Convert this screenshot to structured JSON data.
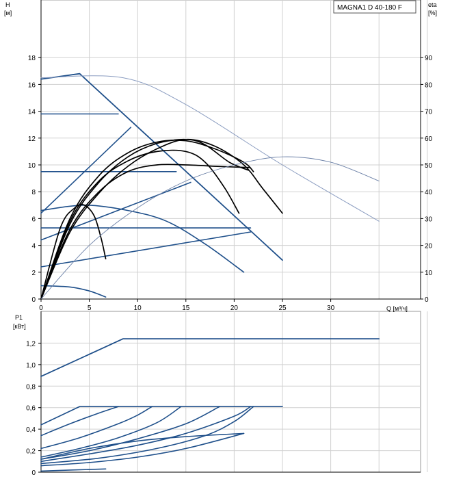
{
  "model_label": "MAGNA1 D 40-180 F",
  "colors": {
    "setting_line": "#1e4f8a",
    "head_curve": "#000000",
    "eta_curve": "#6a7fa6",
    "max_curve": "#8a9cc0",
    "grid": "#d0d0d0"
  },
  "chart_data": [
    {
      "type": "line",
      "title": "",
      "xlabel": "Q [м³/ч]",
      "ylabel": "H",
      "ylabel_unit": "[м]",
      "y2label": "eta",
      "y2label_unit": "[%]",
      "xlim": [
        0,
        42
      ],
      "ylim": [
        0,
        20
      ],
      "y2lim": [
        0,
        100
      ],
      "xticks": [
        0,
        5,
        10,
        15,
        20,
        25,
        30
      ],
      "xtick_labels": [
        "0",
        "5",
        "10",
        "15",
        "20",
        "25",
        "30"
      ],
      "yticks": [
        0,
        2,
        4,
        6,
        8,
        10,
        12,
        14,
        16,
        18
      ],
      "ytick_labels": [
        "0",
        "2",
        "4",
        "6",
        "8",
        "10",
        "12",
        "14",
        "16",
        "18"
      ],
      "y2ticks": [
        0,
        10,
        20,
        30,
        40,
        50,
        60,
        70,
        80,
        90
      ],
      "y2tick_labels": [
        "0",
        "10",
        "20",
        "30",
        "40",
        "50",
        "60",
        "70",
        "80",
        "90"
      ],
      "grid": true,
      "series": [
        {
          "role": "max",
          "axis": "y",
          "points": [
            [
              0,
              16.4
            ],
            [
              4,
              16.8
            ],
            [
              25,
              2.9
            ]
          ]
        },
        {
          "role": "max",
          "axis": "y",
          "points": [
            [
              0,
              16.5
            ],
            [
              8.5,
              16.5
            ],
            [
              15,
              14.5
            ],
            [
              25,
              10.0
            ],
            [
              35,
              5.8
            ]
          ]
        },
        {
          "role": "setting",
          "axis": "y",
          "points": [
            [
              0,
              13.8
            ],
            [
              8,
              13.8
            ]
          ]
        },
        {
          "role": "setting",
          "axis": "y",
          "points": [
            [
              0,
              9.5
            ],
            [
              14,
              9.5
            ]
          ]
        },
        {
          "role": "setting",
          "axis": "y",
          "points": [
            [
              0,
              5.3
            ],
            [
              21.7,
              5.3
            ]
          ]
        },
        {
          "role": "setting",
          "axis": "y",
          "points": [
            [
              0,
              6.4
            ],
            [
              9.3,
              12.8
            ]
          ]
        },
        {
          "role": "setting",
          "axis": "y",
          "points": [
            [
              0,
              4.4
            ],
            [
              15.5,
              8.7
            ]
          ]
        },
        {
          "role": "setting",
          "axis": "y",
          "points": [
            [
              0,
              2.4
            ],
            [
              21.7,
              5.0
            ]
          ]
        },
        {
          "role": "setting",
          "axis": "y",
          "points": [
            [
              0,
              6.6
            ],
            [
              4.5,
              7.0
            ],
            [
              9,
              6.6
            ],
            [
              13,
              5.8
            ],
            [
              17,
              4.1
            ],
            [
              21,
              2.0
            ]
          ]
        },
        {
          "role": "setting",
          "axis": "y",
          "points": [
            [
              0,
              1.0
            ],
            [
              3,
              0.9
            ],
            [
              5,
              0.6
            ],
            [
              6.7,
              0.15
            ]
          ]
        },
        {
          "role": "head",
          "axis": "y",
          "points": [
            [
              0,
              0
            ],
            [
              2,
              5.3
            ],
            [
              3.5,
              6.8
            ],
            [
              4.5,
              7.0
            ],
            [
              5.5,
              6.2
            ],
            [
              6.2,
              4.6
            ],
            [
              6.7,
              3.0
            ]
          ]
        },
        {
          "role": "head",
          "axis": "y",
          "points": [
            [
              0,
              0
            ],
            [
              3,
              6.0
            ],
            [
              6,
              9.2
            ],
            [
              9,
              10.9
            ],
            [
              12,
              11.7
            ],
            [
              15,
              11.8
            ],
            [
              18,
              11.2
            ],
            [
              21,
              10.2
            ],
            [
              22,
              9.5
            ]
          ]
        },
        {
          "role": "head",
          "axis": "y",
          "points": [
            [
              0,
              0
            ],
            [
              3,
              5.8
            ],
            [
              6,
              8.8
            ],
            [
              9,
              10.3
            ],
            [
              12,
              11.0
            ],
            [
              15,
              11.0
            ],
            [
              17,
              10.2
            ],
            [
              19,
              8.3
            ],
            [
              20.5,
              6.4
            ]
          ]
        },
        {
          "role": "head",
          "axis": "y",
          "points": [
            [
              0,
              0
            ],
            [
              3,
              5.2
            ],
            [
              6,
              8.0
            ],
            [
              9,
              9.5
            ],
            [
              12,
              10.0
            ],
            [
              15,
              10.0
            ],
            [
              18,
              9.9
            ],
            [
              21.6,
              9.8
            ]
          ]
        },
        {
          "role": "head",
          "axis": "y",
          "points": [
            [
              0,
              0
            ],
            [
              3,
              5.0
            ],
            [
              6,
              7.9
            ],
            [
              9,
              9.9
            ],
            [
              12,
              11.2
            ],
            [
              15,
              11.9
            ],
            [
              18,
              11.4
            ],
            [
              21,
              10.0
            ],
            [
              23,
              8.2
            ],
            [
              25,
              6.4
            ]
          ]
        },
        {
          "role": "head",
          "axis": "y",
          "points": [
            [
              0,
              0
            ],
            [
              3,
              5.6
            ],
            [
              6,
              8.7
            ],
            [
              9,
              10.6
            ],
            [
              12,
              11.6
            ],
            [
              15,
              11.9
            ],
            [
              17,
              11.5
            ],
            [
              19.5,
              10.2
            ],
            [
              21.5,
              9.6
            ]
          ]
        },
        {
          "role": "eta",
          "axis": "y2",
          "points": [
            [
              0,
              0
            ],
            [
              5,
              20
            ],
            [
              10,
              34
            ],
            [
              15,
              44
            ],
            [
              20,
              50
            ],
            [
              25,
              53
            ],
            [
              30,
              51
            ],
            [
              35,
              44
            ]
          ]
        }
      ]
    },
    {
      "type": "line",
      "title": "",
      "xlabel": "",
      "ylabel": "P1",
      "ylabel_unit": "[кВт]",
      "xlim": [
        0,
        42
      ],
      "ylim": [
        0,
        1.4
      ],
      "yticks": [
        0,
        0.2,
        0.4,
        0.6,
        0.8,
        1.0,
        1.2
      ],
      "ytick_labels": [
        "0",
        "0,2",
        "0,4",
        "0,6",
        "0,8",
        "1,0",
        "1,2"
      ],
      "grid": true,
      "series": [
        {
          "role": "max",
          "axis": "y",
          "points": [
            [
              0,
              0.89
            ],
            [
              8.5,
              1.24
            ],
            [
              35,
              1.24
            ]
          ]
        },
        {
          "role": "setting",
          "axis": "y",
          "points": [
            [
              0,
              0.44
            ],
            [
              4,
              0.61
            ],
            [
              25,
              0.61
            ]
          ]
        },
        {
          "role": "setting",
          "axis": "y",
          "points": [
            [
              0,
              0.34
            ],
            [
              3,
              0.45
            ],
            [
              6,
              0.55
            ],
            [
              8,
              0.61
            ]
          ]
        },
        {
          "role": "setting",
          "axis": "y",
          "points": [
            [
              0,
              0.22
            ],
            [
              4,
              0.32
            ],
            [
              8,
              0.45
            ],
            [
              10,
              0.53
            ],
            [
              11.5,
              0.61
            ]
          ]
        },
        {
          "role": "setting",
          "axis": "y",
          "points": [
            [
              0,
              0.14
            ],
            [
              4,
              0.22
            ],
            [
              8,
              0.32
            ],
            [
              12,
              0.46
            ],
            [
              14.5,
              0.61
            ]
          ]
        },
        {
          "role": "setting",
          "axis": "y",
          "points": [
            [
              0,
              0.12
            ],
            [
              5,
              0.2
            ],
            [
              10,
              0.31
            ],
            [
              15,
              0.45
            ],
            [
              18.5,
              0.61
            ]
          ]
        },
        {
          "role": "setting",
          "axis": "y",
          "points": [
            [
              0,
              0.1
            ],
            [
              5,
              0.17
            ],
            [
              10,
              0.25
            ],
            [
              15,
              0.36
            ],
            [
              20,
              0.52
            ],
            [
              21.7,
              0.61
            ]
          ]
        },
        {
          "role": "setting",
          "axis": "y",
          "points": [
            [
              0,
              0.08
            ],
            [
              6,
              0.13
            ],
            [
              12,
              0.22
            ],
            [
              17,
              0.34
            ],
            [
              20,
              0.47
            ],
            [
              22,
              0.61
            ]
          ]
        },
        {
          "role": "setting",
          "axis": "y",
          "points": [
            [
              0,
              0.12
            ],
            [
              5,
              0.22
            ],
            [
              10,
              0.29
            ],
            [
              15,
              0.33
            ],
            [
              21,
              0.36
            ]
          ]
        },
        {
          "role": "setting",
          "axis": "y",
          "points": [
            [
              0,
              0.06
            ],
            [
              5,
              0.09
            ],
            [
              10,
              0.14
            ],
            [
              15,
              0.22
            ],
            [
              21,
              0.36
            ]
          ]
        },
        {
          "role": "setting",
          "axis": "y",
          "points": [
            [
              0,
              0.01
            ],
            [
              3,
              0.02
            ],
            [
              6.7,
              0.03
            ]
          ]
        }
      ]
    }
  ]
}
